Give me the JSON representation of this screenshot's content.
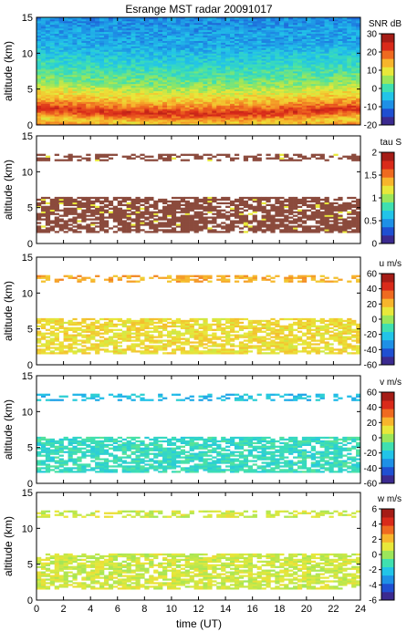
{
  "title": "Esrange MST radar 20091017",
  "xlabel": "time (UT)",
  "ylabel": "altitude (km)",
  "x_ticks": [
    "0",
    "2",
    "4",
    "6",
    "8",
    "10",
    "12",
    "14",
    "16",
    "18",
    "20",
    "22",
    "24"
  ],
  "y_ticks": [
    "0",
    "5",
    "10",
    "15"
  ],
  "colormap": [
    "#3b2a8f",
    "#1f4fd1",
    "#1e90e6",
    "#22c4e8",
    "#3fe0b0",
    "#9be65a",
    "#e8e83a",
    "#f7b52c",
    "#ef6a20",
    "#d92a1a",
    "#a51c16"
  ],
  "noise_color": "#8b4a3c",
  "chart_data": [
    {
      "type": "heatmap",
      "panel": "SNR",
      "colorbar_label": "SNR dB",
      "colorbar_ticks": [
        "30",
        "20",
        "10",
        "0",
        "-10",
        "-20"
      ],
      "clim": [
        -20,
        30
      ],
      "xlim": [
        0,
        24
      ],
      "ylim": [
        0,
        15
      ],
      "profile": {
        "altitude_km": [
          0,
          1,
          2,
          2.5,
          3,
          4,
          5,
          6,
          7,
          8,
          9,
          10,
          11,
          12,
          13,
          14,
          15
        ],
        "snr_db": [
          20,
          12,
          22,
          25,
          20,
          14,
          10,
          5,
          2,
          0,
          -2,
          -4,
          -6,
          -8,
          -8,
          -9,
          -10
        ]
      }
    },
    {
      "type": "heatmap",
      "panel": "tau",
      "colorbar_label": "tau S",
      "colorbar_ticks": [
        "2",
        "1.5",
        "1",
        "0.5",
        "0"
      ],
      "clim": [
        0,
        2
      ],
      "xlim": [
        0,
        24
      ],
      "ylim": [
        0,
        15
      ],
      "layers": [
        {
          "bottom_km": 1.5,
          "top_km": 6.5,
          "value": 2
        },
        {
          "bottom_km": 11.5,
          "top_km": 12.5,
          "value": 2
        }
      ]
    },
    {
      "type": "heatmap",
      "panel": "u",
      "colorbar_label": "u m/s",
      "colorbar_ticks": [
        "60",
        "40",
        "20",
        "0",
        "-20",
        "-40",
        "-60"
      ],
      "clim": [
        -60,
        60
      ],
      "xlim": [
        0,
        24
      ],
      "ylim": [
        0,
        15
      ],
      "layers": [
        {
          "bottom_km": 1.5,
          "top_km": 6.5,
          "value": 15
        },
        {
          "bottom_km": 11.5,
          "top_km": 12.5,
          "value": 25
        }
      ]
    },
    {
      "type": "heatmap",
      "panel": "v",
      "colorbar_label": "v m/s",
      "colorbar_ticks": [
        "60",
        "40",
        "20",
        "0",
        "-20",
        "-40",
        "-60"
      ],
      "clim": [
        -60,
        60
      ],
      "xlim": [
        0,
        24
      ],
      "ylim": [
        0,
        15
      ],
      "layers": [
        {
          "bottom_km": 1.5,
          "top_km": 6.5,
          "value": -15
        },
        {
          "bottom_km": 11.5,
          "top_km": 12.5,
          "value": -25
        }
      ]
    },
    {
      "type": "heatmap",
      "panel": "w",
      "colorbar_label": "w m/s",
      "colorbar_ticks": [
        "6",
        "4",
        "2",
        "0",
        "-2",
        "-4",
        "-6"
      ],
      "clim": [
        -6,
        6
      ],
      "xlim": [
        0,
        24
      ],
      "ylim": [
        0,
        15
      ],
      "layers": [
        {
          "bottom_km": 1.5,
          "top_km": 6.5,
          "value": 0.8
        },
        {
          "bottom_km": 11.5,
          "top_km": 12.5,
          "value": 0.8
        }
      ]
    }
  ]
}
